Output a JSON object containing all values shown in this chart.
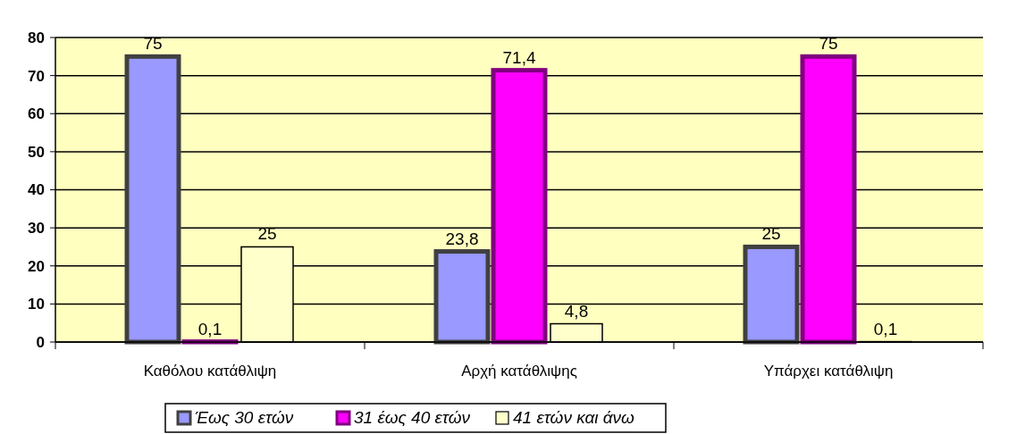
{
  "chart_data": {
    "type": "bar",
    "categories": [
      "Καθόλου κατάθλιψη",
      "Αρχή κατάθλιψης",
      "Υπάρχει κατάθλιψη"
    ],
    "series": [
      {
        "name": "Έως 30 ετών",
        "color": "#9999ff",
        "values": [
          75,
          23.8,
          25
        ],
        "value_labels": [
          "75",
          "23,8",
          "25"
        ]
      },
      {
        "name": "31 έως 40 ετών",
        "color": "#ff00ff",
        "values": [
          0.1,
          71.4,
          75
        ],
        "value_labels": [
          "0,1",
          "71,4",
          "75"
        ]
      },
      {
        "name": "41 ετών και άνω",
        "color": "#ffffcc",
        "values": [
          25,
          4.8,
          0.1
        ],
        "value_labels": [
          "25",
          "4,8",
          "0,1"
        ]
      }
    ],
    "ylim": [
      0,
      80
    ],
    "yticks": [
      0,
      10,
      20,
      30,
      40,
      50,
      60,
      70,
      80
    ],
    "grid": "y",
    "legend": "bottom"
  }
}
